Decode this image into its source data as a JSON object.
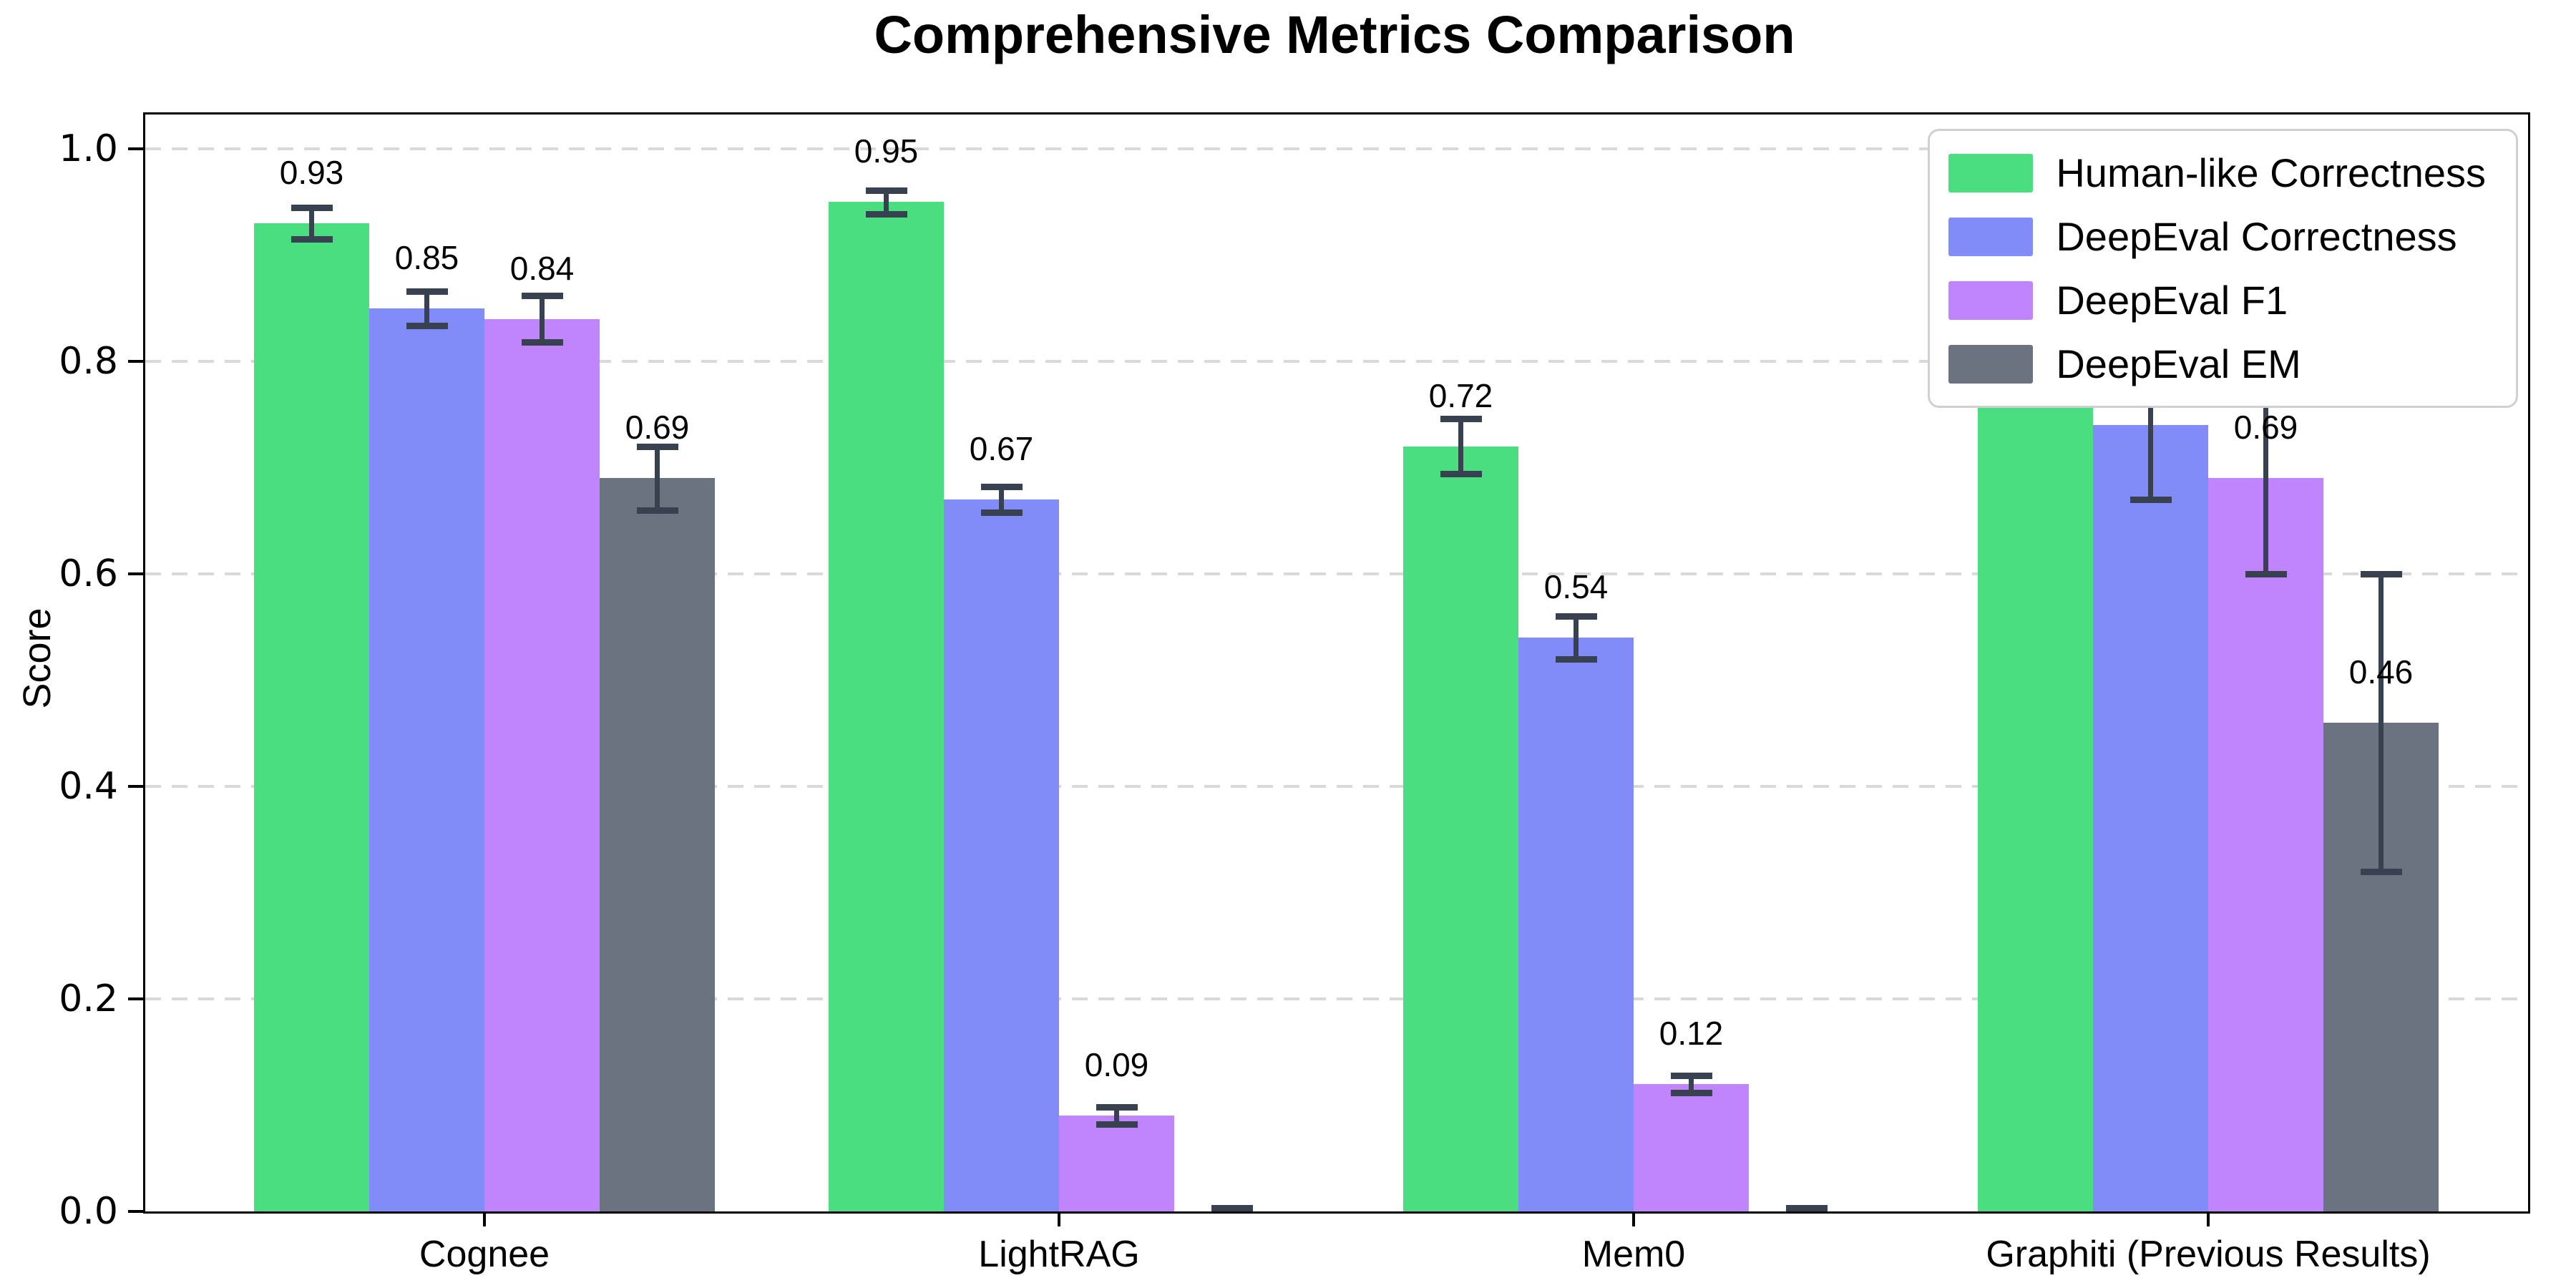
{
  "chart_data": {
    "type": "bar",
    "title": "Comprehensive Metrics Comparison",
    "xlabel": "",
    "ylabel": "Score",
    "ylim": [
      0,
      1.032
    ],
    "yticks": [
      0.0,
      0.2,
      0.4,
      0.6,
      0.8,
      1.0
    ],
    "ytick_labels": [
      "0.0",
      "0.2",
      "0.4",
      "0.6",
      "0.8",
      "1.0"
    ],
    "grid": "horizontal-dashed",
    "grid_color": "#d9d9d9",
    "axis_color": "#000000",
    "error_bar_color": "#37414f",
    "legend_position": "upper-right",
    "categories": [
      "Cognee",
      "LightRAG",
      "Mem0",
      "Graphiti (Previous Results)"
    ],
    "series": [
      {
        "name": "Human-like Correctness",
        "color": "#4ade80",
        "values": [
          0.93,
          0.95,
          0.72,
          0.88
        ],
        "errors": [
          0.015,
          0.011,
          0.026,
          0.07
        ],
        "labels": [
          "0.93",
          "0.95",
          "0.72",
          "0.88"
        ]
      },
      {
        "name": "DeepEval Correctness",
        "color": "#818cf8",
        "values": [
          0.85,
          0.67,
          0.54,
          0.74
        ],
        "errors": [
          0.016,
          0.012,
          0.02,
          0.07
        ],
        "labels": [
          "0.85",
          "0.67",
          "0.54",
          "0.74"
        ]
      },
      {
        "name": "DeepEval F1",
        "color": "#c084fc",
        "values": [
          0.84,
          0.09,
          0.12,
          0.69
        ],
        "errors": [
          0.022,
          0.008,
          0.008,
          0.09
        ],
        "labels": [
          "0.84",
          "0.09",
          "0.12",
          "0.69"
        ]
      },
      {
        "name": "DeepEval EM",
        "color": "#6b7280",
        "values": [
          0.69,
          0.0,
          0.0,
          0.46
        ],
        "errors": [
          0.03,
          0.0,
          0.0,
          0.14
        ],
        "labels": [
          "0.69",
          "",
          "",
          "0.46"
        ]
      }
    ]
  }
}
